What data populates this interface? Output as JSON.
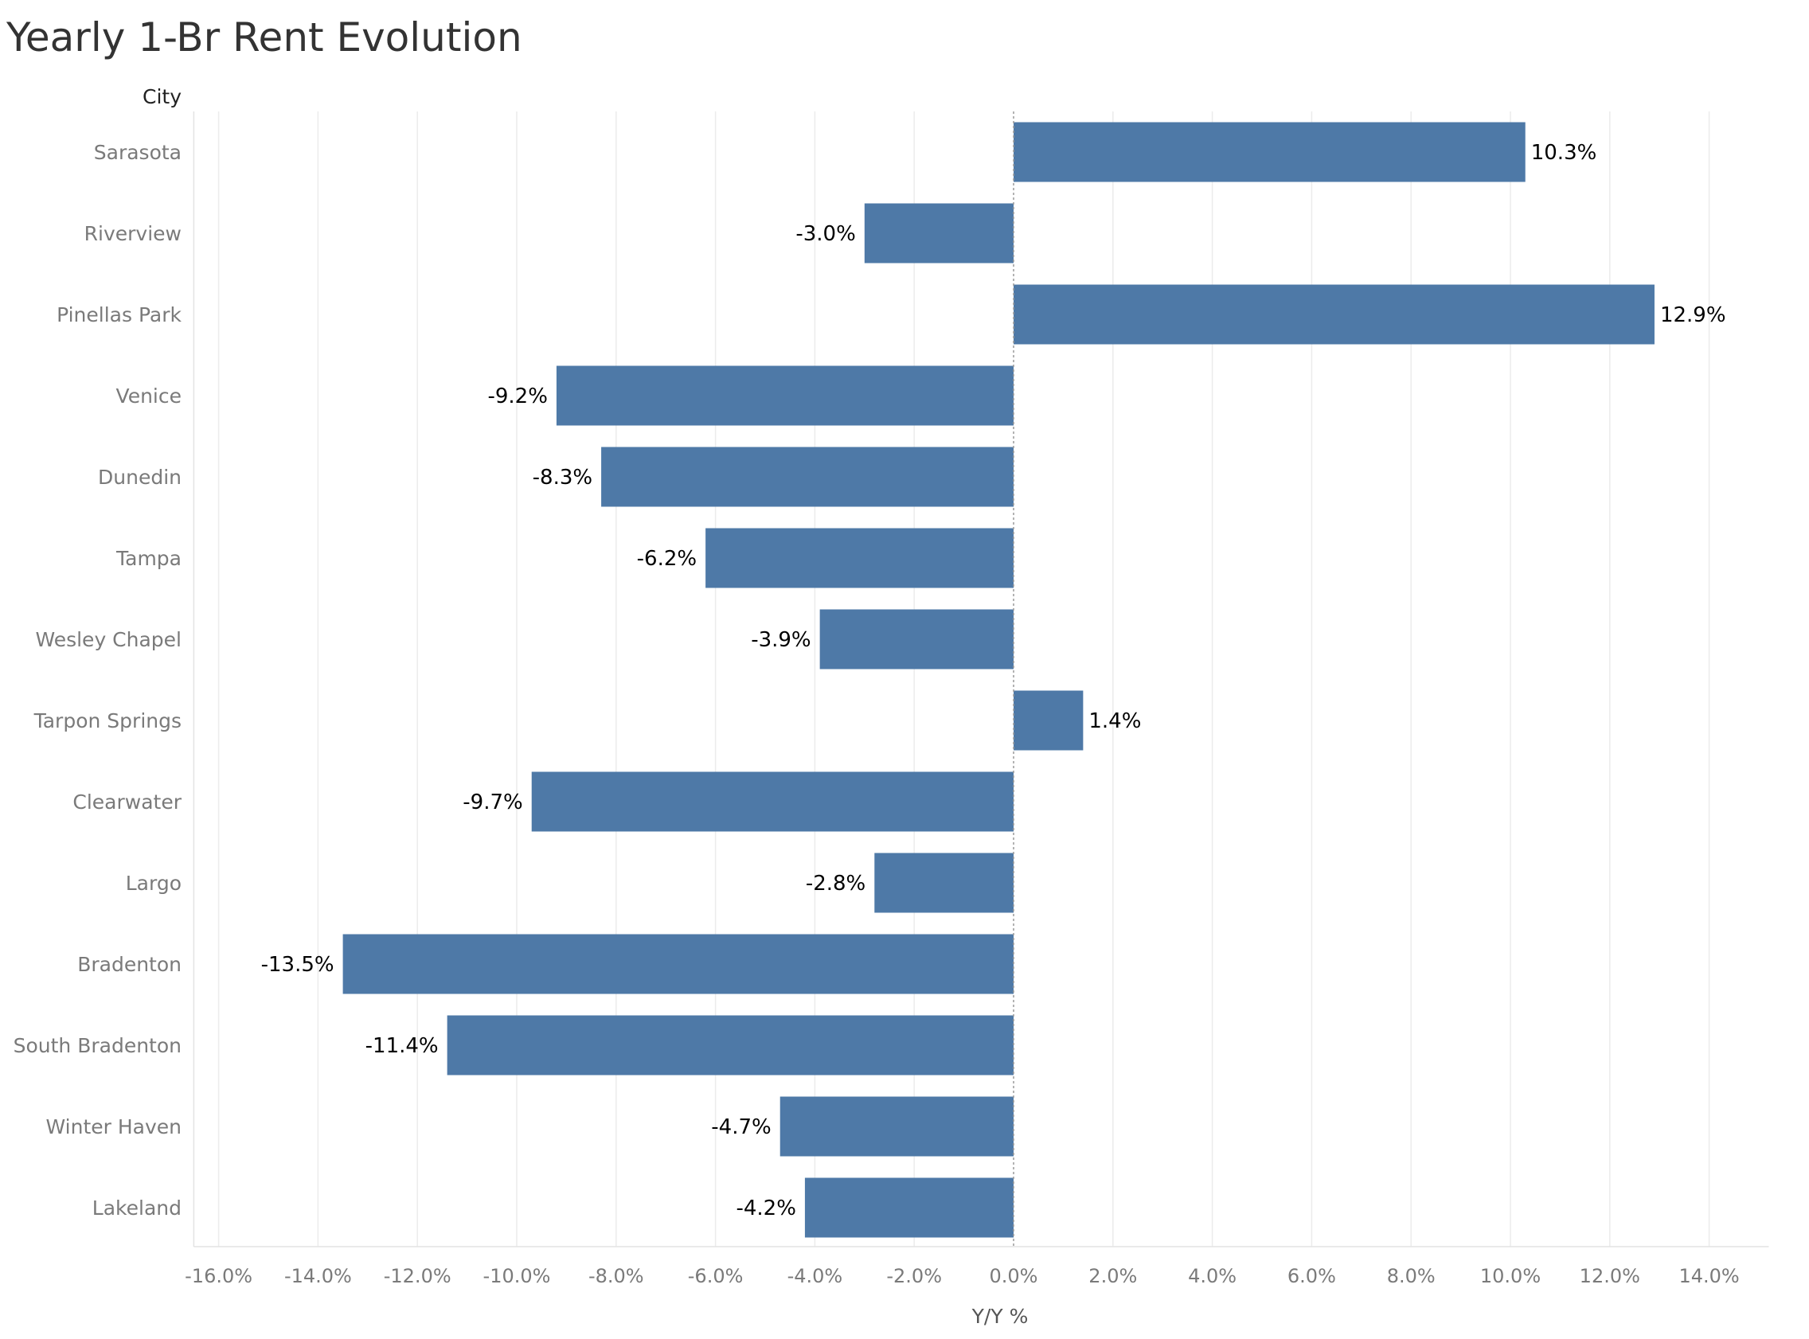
{
  "chart_data": {
    "type": "bar",
    "orientation": "horizontal",
    "title": "Yearly 1-Br Rent Evolution",
    "row_header": "City",
    "xlabel": "Y/Y %",
    "ylabel": "City",
    "categories": [
      "Sarasota",
      "Riverview",
      "Pinellas Park",
      "Venice",
      "Dunedin",
      "Tampa",
      "Wesley Chapel",
      "Tarpon Springs",
      "Clearwater",
      "Largo",
      "Bradenton",
      "South Bradenton",
      "Winter Haven",
      "Lakeland"
    ],
    "values": [
      10.3,
      -3.0,
      12.9,
      -9.2,
      -8.3,
      -6.2,
      -3.9,
      1.4,
      -9.7,
      -2.8,
      -13.5,
      -11.4,
      -4.7,
      -4.2
    ],
    "value_labels": [
      "10.3%",
      "-3.0%",
      "12.9%",
      "-9.2%",
      "-8.3%",
      "-6.2%",
      "-3.9%",
      "1.4%",
      "-9.7%",
      "-2.8%",
      "-13.5%",
      "-11.4%",
      "-4.7%",
      "-4.2%"
    ],
    "xlim": [
      -16.5,
      15.2
    ],
    "xticks": [
      -16,
      -14,
      -12,
      -10,
      -8,
      -6,
      -4,
      -2,
      0,
      2,
      4,
      6,
      8,
      10,
      12,
      14
    ],
    "xtick_labels": [
      "-16.0%",
      "-14.0%",
      "-12.0%",
      "-10.0%",
      "-8.0%",
      "-6.0%",
      "-4.0%",
      "-2.0%",
      "0.0%",
      "2.0%",
      "4.0%",
      "6.0%",
      "8.0%",
      "10.0%",
      "12.0%",
      "14.0%"
    ],
    "grid": true,
    "legend": "none",
    "bar_color": "#4e79a7"
  }
}
